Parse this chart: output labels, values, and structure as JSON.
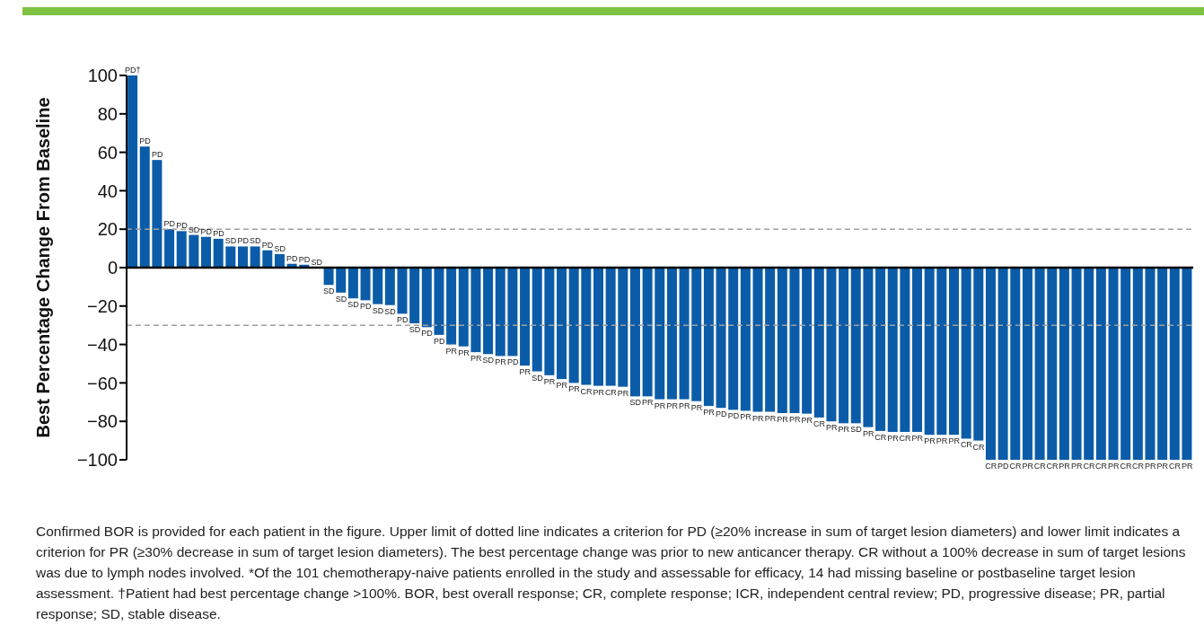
{
  "chart_data": {
    "type": "bar",
    "ylabel": "Best Percentage Change From Baseline",
    "categories": [
      null,
      null,
      null,
      null,
      null,
      null,
      null,
      null,
      null,
      null,
      null,
      null,
      null,
      null,
      null,
      null,
      null,
      null,
      null,
      null,
      null,
      null,
      null,
      null,
      null,
      null,
      null,
      null,
      null,
      null,
      null,
      null,
      null,
      null,
      null,
      null,
      null,
      null,
      null,
      null,
      null,
      null,
      null,
      null,
      null,
      null,
      null,
      null,
      null,
      null,
      null,
      null,
      null,
      null,
      null,
      null,
      null,
      null,
      null,
      null,
      null,
      null,
      null,
      null,
      null,
      null,
      null,
      null,
      null,
      null,
      null,
      null,
      null,
      null,
      null,
      null,
      null,
      null,
      null,
      null,
      null,
      null,
      null,
      null,
      null,
      null,
      null
    ],
    "value_labels": [
      "PD†",
      "PD",
      "PD",
      "PD",
      "PD",
      "SD",
      "PD",
      "PD",
      "SD",
      "PD",
      "SD",
      "PD",
      "SD",
      "PD",
      "PD",
      "SD",
      "SD",
      "SD",
      "SD",
      "PD",
      "SD",
      "SD",
      "PD",
      "SD",
      "PD",
      "PD",
      "PR",
      "PR",
      "PR",
      "SD",
      "PR",
      "PD",
      "PR",
      "SD",
      "PR",
      "PR",
      "PR",
      "CR",
      "PR",
      "CR",
      "PR",
      "SD",
      "PR",
      "PR",
      "PR",
      "PR",
      "PR",
      "PR",
      "PD",
      "PD",
      "PR",
      "PR",
      "PR",
      "PR",
      "PR",
      "PR",
      "CR",
      "PR",
      "PR",
      "SD",
      "PR",
      "CR",
      "PR",
      "CR",
      "PR",
      "PR",
      "PR",
      "PR",
      "CR",
      "CR",
      "CR",
      "PD",
      "CR",
      "PR",
      "CR",
      "CR",
      "PR",
      "PR",
      "CR",
      "CR",
      "PR",
      "CR",
      "CR",
      "PR",
      "PR",
      "CR",
      "PR"
    ],
    "values": [
      100,
      63,
      56,
      20,
      19,
      17,
      16,
      15,
      11,
      11,
      11,
      9,
      7,
      2,
      1.5,
      0,
      -9,
      -13,
      -16,
      -17,
      -19,
      -19.5,
      -24,
      -29,
      -31,
      -35,
      -40,
      -41,
      -44,
      -45,
      -46,
      -46,
      -51,
      -54,
      -56,
      -58,
      -60,
      -61,
      -61.5,
      -61.5,
      -62,
      -67,
      -67,
      -68.5,
      -68.5,
      -68.5,
      -69.5,
      -72,
      -73,
      -74,
      -74.5,
      -75,
      -75,
      -75.7,
      -75.7,
      -76,
      -78,
      -80,
      -81,
      -81,
      -83,
      -85,
      -85.5,
      -85.5,
      -85.5,
      -87,
      -87,
      -87,
      -89,
      -90,
      -100,
      -100,
      -100,
      -100,
      -100,
      -100,
      -100,
      -100,
      -100,
      -100,
      -100,
      -100,
      -100,
      -100,
      -100,
      -100,
      -100
    ],
    "color": "#0b5ca8",
    "ylim": [
      -100,
      100
    ],
    "yticks": [
      {
        "value": -100,
        "label": "−100"
      },
      {
        "value": -80,
        "label": "−80"
      },
      {
        "value": -60,
        "label": "−60"
      },
      {
        "value": -40,
        "label": "−40"
      },
      {
        "value": -20,
        "label": "−20"
      },
      0,
      20,
      40,
      60,
      80,
      100
    ],
    "ref_lines": [
      {
        "axis": "y",
        "value": 20,
        "color": "#a0a0a0",
        "line_style": "dashed"
      },
      {
        "axis": "y",
        "value": -30,
        "color": "#a0a0a0",
        "line_style": "dashed"
      }
    ],
    "grid": false,
    "legend": false,
    "annotations": [
      "Confirmed BOR is provided for each patient in the figure. Upper limit of dotted line indicates a criterion for PD (≥20% increase in sum of target lesion diameters) and lower limit indicates a criterion for PR (≥30% decrease in sum of target lesion diameters). The best percentage change was prior to new anticancer therapy. CR without a 100% decrease in sum of target lesions was due to lymph nodes involved. *Of the 101 chemotherapy-naive patients enrolled in the study and assessable for efficacy, 14 had missing baseline or postbaseline target lesion assessment. †Patient had best percentage change >100%. BOR, best overall response; CR, complete response; ICR, independent central review; PD, progressive disease; PR, partial response; SD, stable disease."
    ]
  }
}
